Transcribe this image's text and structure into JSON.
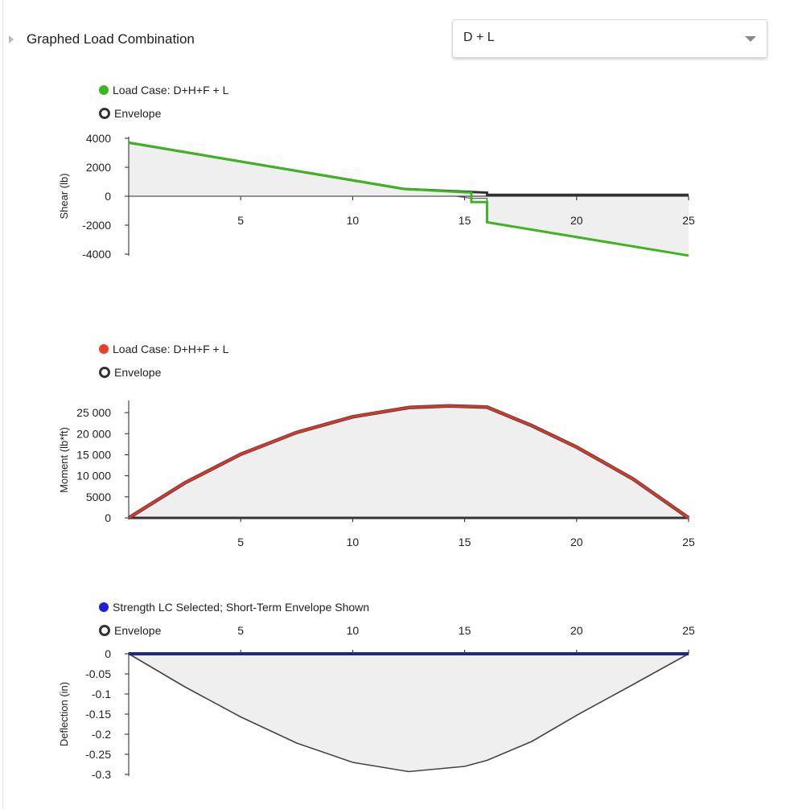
{
  "header": {
    "title": "Graphed Load Combination",
    "selected_combination": "D + L"
  },
  "chart_data": [
    {
      "type": "area",
      "id": "shear",
      "ylabel": "Shear (lb)",
      "xlim": [
        0,
        25
      ],
      "ylim": [
        -4000,
        4000
      ],
      "x_ticks": [
        5,
        10,
        15,
        20,
        25
      ],
      "y_ticks": [
        4000,
        2000,
        0,
        -2000,
        -4000
      ],
      "y_tick_labels": [
        "4000",
        "2000",
        "0",
        "-2000",
        "-4000"
      ],
      "legend": [
        {
          "label": "Load Case: D+H+F + L",
          "color": "#3cb521",
          "marker": "dot"
        },
        {
          "label": "Envelope",
          "color": "#333333",
          "marker": "ring"
        }
      ],
      "series": [
        {
          "name": "Load Case: D+H+F + L",
          "color": "#3cb521",
          "x": [
            0,
            12.3,
            15.3,
            15.3,
            16,
            16,
            25
          ],
          "y": [
            3700,
            500,
            250,
            -400,
            -400,
            -1800,
            -4100
          ]
        },
        {
          "name": "Envelope upper",
          "color": "#333333",
          "x": [
            0,
            12.3,
            16,
            16,
            25
          ],
          "y": [
            3700,
            500,
            250,
            100,
            100
          ]
        },
        {
          "name": "Envelope lower",
          "color": "#333333",
          "x": [
            0,
            14.6,
            15.3,
            16,
            16,
            25
          ],
          "y": [
            0,
            0,
            -150,
            -150,
            -1800,
            -4100
          ]
        }
      ]
    },
    {
      "type": "area",
      "id": "moment",
      "ylabel": "Moment (lb*ft)",
      "xlim": [
        0,
        25
      ],
      "ylim": [
        0,
        27500
      ],
      "x_ticks": [
        5,
        10,
        15,
        20,
        25
      ],
      "y_ticks": [
        25000,
        20000,
        15000,
        10000,
        5000,
        0
      ],
      "y_tick_labels": [
        "25 000",
        "20 000",
        "15 000",
        "10 000",
        "5000",
        "0"
      ],
      "legend": [
        {
          "label": "Load Case: D+H+F + L",
          "color": "#e8402a",
          "marker": "dot"
        },
        {
          "label": "Envelope",
          "color": "#333333",
          "marker": "ring"
        }
      ],
      "series": [
        {
          "name": "Load Case: D+H+F + L",
          "color": "#d9362a",
          "x": [
            0,
            2.5,
            5,
            7.5,
            10,
            12.5,
            14.3,
            16,
            18,
            20,
            22.5,
            25
          ],
          "y": [
            0,
            8300,
            15100,
            20300,
            24000,
            26200,
            26600,
            26300,
            21900,
            16800,
            9300,
            0
          ]
        },
        {
          "name": "Envelope",
          "color": "#333333",
          "x": [
            0,
            25
          ],
          "y": [
            0,
            0
          ]
        }
      ]
    },
    {
      "type": "area",
      "id": "deflection",
      "ylabel": "Deflection (in)",
      "xlim": [
        0,
        25
      ],
      "ylim": [
        -0.3,
        0
      ],
      "x_ticks": [
        5,
        10,
        15,
        20,
        25
      ],
      "y_ticks": [
        0,
        -0.05,
        -0.1,
        -0.15,
        -0.2,
        -0.25,
        -0.3
      ],
      "y_tick_labels": [
        "0",
        "-0.05",
        "-0.1",
        "-0.15",
        "-0.2",
        "-0.25",
        "-0.3"
      ],
      "legend": [
        {
          "label": "Strength LC Selected; Short-Term Envelope Shown",
          "color": "#1f1fd8",
          "marker": "dot"
        },
        {
          "label": "Envelope",
          "color": "#333333",
          "marker": "ring"
        }
      ],
      "series": [
        {
          "name": "Strength LC Selected",
          "color": "#1a2a8a",
          "x": [
            0,
            25
          ],
          "y": [
            0,
            0
          ]
        },
        {
          "name": "Envelope",
          "color": "#444444",
          "x": [
            0,
            2.5,
            5,
            7.5,
            10,
            12.5,
            15,
            16,
            18,
            20,
            22.5,
            25
          ],
          "y": [
            0,
            -0.082,
            -0.157,
            -0.222,
            -0.27,
            -0.293,
            -0.28,
            -0.265,
            -0.218,
            -0.153,
            -0.077,
            0
          ]
        }
      ]
    }
  ]
}
